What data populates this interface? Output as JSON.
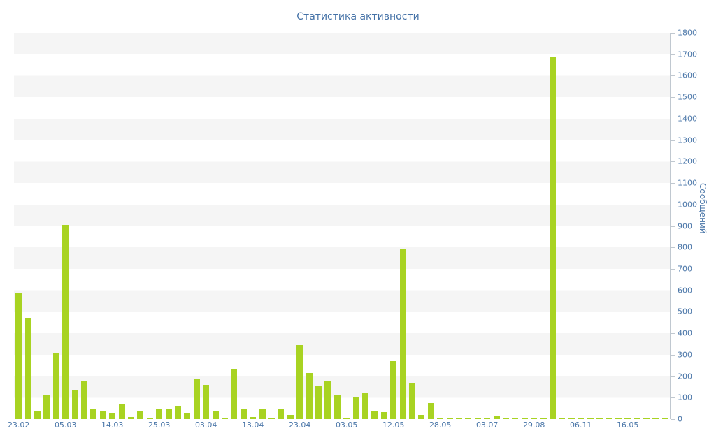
{
  "chart_data": {
    "type": "bar",
    "title": "Статистика активности",
    "ylabel": "Сообщений",
    "xlabel": "",
    "ylim": [
      0,
      1800
    ],
    "y_tick_step": 100,
    "y_ticks": [
      0,
      100,
      200,
      300,
      400,
      500,
      600,
      700,
      800,
      900,
      1000,
      1100,
      1200,
      1300,
      1400,
      1500,
      1600,
      1700,
      1800
    ],
    "legend": null,
    "grid": "horizontal-bands",
    "bar_color": "#a8d322",
    "label_color": "#4a76a8",
    "title_color": "#4572a7",
    "band_color": "#f5f5f5",
    "values": [
      585,
      470,
      40,
      115,
      310,
      905,
      135,
      180,
      45,
      35,
      25,
      70,
      10,
      35,
      5,
      48,
      50,
      62,
      25,
      190,
      160,
      40,
      5,
      230,
      45,
      10,
      50,
      8,
      45,
      20,
      345,
      215,
      155,
      175,
      110,
      5,
      100,
      120,
      40,
      33,
      270,
      790,
      170,
      20,
      75,
      4,
      3,
      3,
      2,
      2,
      3,
      15,
      2,
      2,
      2,
      2,
      2,
      1690,
      2,
      2,
      2,
      2,
      2,
      2,
      2,
      2,
      2,
      2,
      2,
      2
    ],
    "x_tick_labels": [
      {
        "index": 0,
        "label": "23.02"
      },
      {
        "index": 5,
        "label": "05.03"
      },
      {
        "index": 10,
        "label": "14.03"
      },
      {
        "index": 15,
        "label": "25.03"
      },
      {
        "index": 20,
        "label": "03.04"
      },
      {
        "index": 25,
        "label": "13.04"
      },
      {
        "index": 30,
        "label": "23.04"
      },
      {
        "index": 35,
        "label": "03.05"
      },
      {
        "index": 40,
        "label": "12.05"
      },
      {
        "index": 45,
        "label": "28.05"
      },
      {
        "index": 50,
        "label": "03.07"
      },
      {
        "index": 55,
        "label": "29.08"
      },
      {
        "index": 60,
        "label": "06.11"
      },
      {
        "index": 65,
        "label": "16.05"
      }
    ]
  }
}
